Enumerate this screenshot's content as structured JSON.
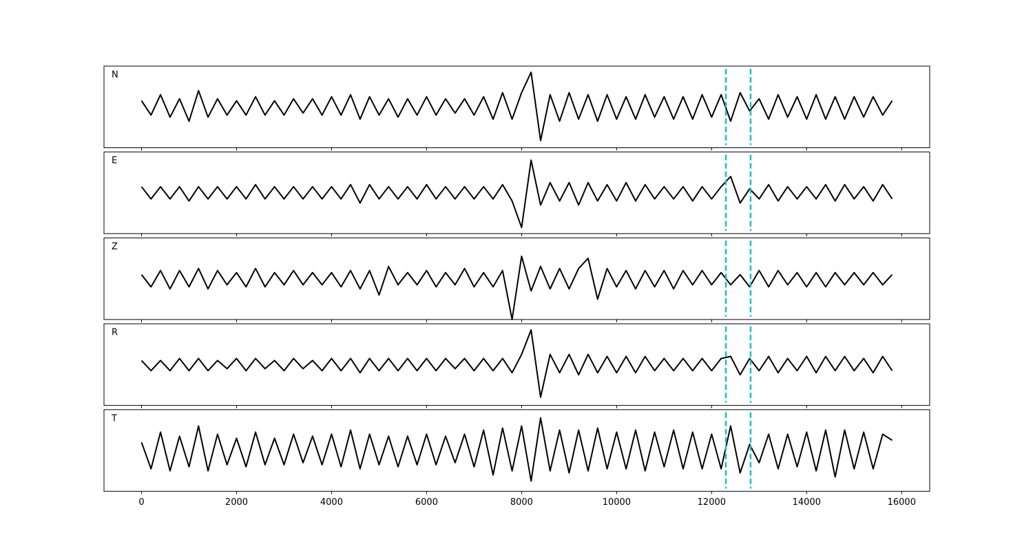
{
  "chart_data": {
    "type": "line",
    "stacked_panels": true,
    "x": [
      0,
      200,
      400,
      600,
      800,
      1000,
      1200,
      1400,
      1600,
      1800,
      2000,
      2200,
      2400,
      2600,
      2800,
      3000,
      3200,
      3400,
      3600,
      3800,
      4000,
      4200,
      4400,
      4600,
      4800,
      5000,
      5200,
      5400,
      5600,
      5800,
      6000,
      6200,
      6400,
      6600,
      6800,
      7000,
      7200,
      7400,
      7600,
      7800,
      8000,
      8200,
      8400,
      8600,
      8800,
      9000,
      9200,
      9400,
      9600,
      9800,
      10000,
      10200,
      10400,
      10600,
      10800,
      11000,
      11200,
      11400,
      11600,
      11800,
      12000,
      12200,
      12400,
      12600,
      12800,
      13000,
      13200,
      13400,
      13600,
      13800,
      14000,
      14200,
      14400,
      14600,
      14800,
      15000,
      15200,
      15400,
      15600,
      15800
    ],
    "series": [
      {
        "name": "N",
        "color": "#000000",
        "values": [
          0.3,
          -0.4,
          0.6,
          -0.5,
          0.4,
          -0.7,
          0.8,
          -0.5,
          0.4,
          -0.4,
          0.3,
          -0.4,
          0.5,
          -0.4,
          0.3,
          -0.4,
          0.4,
          -0.3,
          0.4,
          -0.4,
          0.5,
          -0.4,
          0.6,
          -0.6,
          0.5,
          -0.4,
          0.4,
          -0.5,
          0.4,
          -0.4,
          0.5,
          -0.4,
          0.4,
          -0.3,
          0.4,
          -0.4,
          0.5,
          -0.6,
          0.7,
          -0.6,
          0.7,
          1.7,
          -1.65,
          0.6,
          -0.7,
          0.7,
          -0.6,
          0.6,
          -0.7,
          0.6,
          -0.6,
          0.5,
          -0.6,
          0.6,
          -0.5,
          0.5,
          -0.6,
          0.5,
          -0.6,
          0.6,
          -0.5,
          0.6,
          -0.7,
          0.7,
          -0.2,
          0.4,
          -0.6,
          0.6,
          -0.5,
          0.5,
          -0.6,
          0.6,
          -0.6,
          0.5,
          -0.6,
          0.5,
          -0.5,
          0.5,
          -0.4,
          0.3
        ]
      },
      {
        "name": "E",
        "color": "#000000",
        "values": [
          0.3,
          -0.3,
          0.3,
          -0.3,
          0.3,
          -0.4,
          0.3,
          -0.3,
          0.3,
          -0.3,
          0.3,
          -0.3,
          0.4,
          -0.3,
          0.3,
          -0.3,
          0.3,
          -0.3,
          0.3,
          -0.3,
          0.3,
          -0.3,
          0.4,
          -0.5,
          0.4,
          -0.3,
          0.3,
          -0.3,
          0.3,
          -0.3,
          0.4,
          -0.3,
          0.3,
          -0.3,
          0.3,
          -0.3,
          0.3,
          -0.3,
          0.4,
          -0.4,
          -1.7,
          1.6,
          -0.6,
          0.5,
          -0.4,
          0.5,
          -0.6,
          0.5,
          -0.4,
          0.4,
          -0.4,
          0.5,
          -0.4,
          0.4,
          -0.3,
          0.3,
          -0.3,
          0.3,
          -0.4,
          0.3,
          -0.3,
          0.3,
          0.8,
          -0.5,
          0.2,
          -0.3,
          0.4,
          -0.4,
          0.3,
          -0.3,
          0.3,
          -0.3,
          0.4,
          -0.4,
          0.4,
          -0.3,
          0.3,
          -0.4,
          0.4,
          -0.3
        ]
      },
      {
        "name": "Z",
        "color": "#000000",
        "values": [
          0.2,
          -0.4,
          0.4,
          -0.5,
          0.4,
          -0.4,
          0.5,
          -0.5,
          0.4,
          -0.3,
          0.3,
          -0.4,
          0.5,
          -0.4,
          0.3,
          -0.3,
          0.4,
          -0.3,
          0.3,
          -0.3,
          0.3,
          -0.4,
          0.4,
          -0.5,
          0.4,
          -0.8,
          0.6,
          -0.3,
          0.3,
          -0.3,
          0.4,
          -0.4,
          0.3,
          -0.3,
          0.5,
          -0.4,
          0.3,
          -0.4,
          0.4,
          -2.0,
          1.1,
          -0.6,
          0.6,
          -0.5,
          0.5,
          -0.5,
          0.5,
          1.0,
          -1.0,
          0.5,
          -0.4,
          0.4,
          -0.5,
          0.4,
          -0.4,
          0.4,
          -0.5,
          0.4,
          -0.3,
          0.4,
          -0.3,
          0.3,
          -0.3,
          0.2,
          -0.4,
          0.4,
          -0.4,
          0.4,
          -0.3,
          0.3,
          -0.4,
          0.3,
          -0.4,
          0.3,
          -0.3,
          0.3,
          -0.3,
          0.3,
          -0.3,
          0.2
        ]
      },
      {
        "name": "R",
        "color": "#000000",
        "values": [
          0.2,
          -0.3,
          0.2,
          -0.3,
          0.3,
          -0.3,
          0.3,
          -0.3,
          0.2,
          -0.2,
          0.3,
          -0.3,
          0.3,
          -0.2,
          0.2,
          -0.3,
          0.3,
          -0.2,
          0.2,
          -0.3,
          0.3,
          -0.3,
          0.3,
          -0.4,
          0.3,
          -0.3,
          0.3,
          -0.3,
          0.3,
          -0.3,
          0.3,
          -0.3,
          0.3,
          -0.2,
          0.3,
          -0.3,
          0.3,
          -0.3,
          0.3,
          -0.4,
          0.5,
          1.7,
          -1.6,
          0.5,
          -0.4,
          0.5,
          -0.5,
          0.5,
          -0.4,
          0.4,
          -0.4,
          0.4,
          -0.4,
          0.4,
          -0.3,
          0.3,
          -0.3,
          0.3,
          -0.3,
          0.3,
          -0.3,
          0.3,
          0.4,
          -0.5,
          0.3,
          -0.3,
          0.4,
          -0.4,
          0.3,
          -0.3,
          0.4,
          -0.4,
          0.4,
          -0.3,
          0.4,
          -0.3,
          0.3,
          -0.4,
          0.4,
          -0.3
        ]
      },
      {
        "name": "T",
        "color": "#000000",
        "values": [
          0.4,
          -0.9,
          0.9,
          -1.0,
          0.7,
          -0.8,
          1.2,
          -1.0,
          0.8,
          -0.7,
          0.6,
          -0.8,
          0.9,
          -0.7,
          0.6,
          -0.7,
          0.8,
          -0.6,
          0.7,
          -0.7,
          0.8,
          -0.8,
          1.0,
          -0.9,
          0.8,
          -0.7,
          0.7,
          -0.8,
          0.7,
          -0.7,
          0.8,
          -0.7,
          0.7,
          -0.6,
          0.8,
          -0.8,
          1.0,
          -1.2,
          1.1,
          -1.0,
          1.2,
          -1.5,
          1.6,
          -1.0,
          1.0,
          -1.1,
          1.0,
          -1.0,
          1.1,
          -0.9,
          0.9,
          -0.9,
          1.0,
          -1.0,
          0.9,
          -0.8,
          1.0,
          -0.9,
          0.9,
          -0.9,
          0.8,
          -0.9,
          1.2,
          -1.1,
          0.3,
          -0.6,
          0.8,
          -0.9,
          0.8,
          -0.8,
          0.9,
          -1.0,
          1.0,
          -1.3,
          1.0,
          -0.9,
          0.9,
          -0.9,
          0.8,
          0.5
        ]
      }
    ],
    "ylim": [
      -2,
      2
    ],
    "xlim": [
      -790,
      16590
    ],
    "xticks": [
      0,
      2000,
      4000,
      6000,
      8000,
      10000,
      12000,
      14000,
      16000
    ],
    "vlines": [
      12300,
      12820
    ],
    "vline_color": "#17bfbf",
    "vline_style": "dashed",
    "grid": false
  }
}
